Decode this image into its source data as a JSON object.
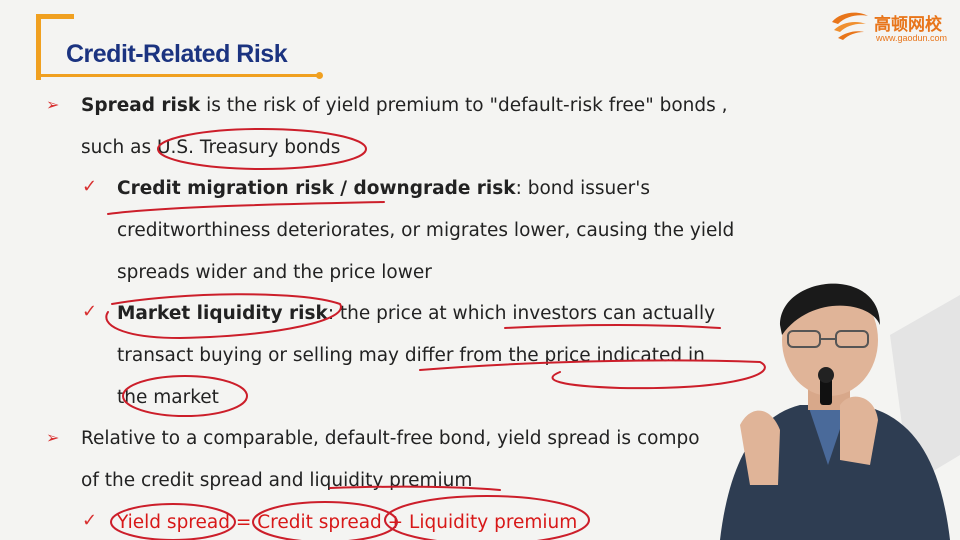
{
  "slide": {
    "title": "Credit-Related Risk",
    "logo": {
      "name_cn": "高顿网校",
      "url": "www.gaodun.com"
    },
    "bullets": {
      "b1_term": "Spread risk",
      "b1_text": " is the risk of yield premium to \"default-risk free\" bonds ,",
      "b1_line2": "such as U.S. Treasury bonds",
      "s1_term": "Credit migration risk / downgrade risk",
      "s1_text": ": bond issuer's",
      "s1_line2": "creditworthiness deteriorates, or migrates lower, causing the yield",
      "s1_line3": "spreads wider and the price lower",
      "s2_term": "Market liquidity risk",
      "s2_text": ": the price at which investors can actually",
      "s2_line2": "transact buying or selling may differ from the price indicated in",
      "s2_line3": "the market",
      "b2_text": "Relative to a comparable, default-free bond, yield spread is compo",
      "b2_line2": "of the credit spread and liquidity premium",
      "s3_text": "Yield spread = Credit spread + Liquidity premium"
    },
    "icons": {
      "arrow_bullet": "➢",
      "check_bullet": "✓"
    },
    "colors": {
      "title": "#1b3380",
      "accent": "#f0a020",
      "annotation": "#cc1e2a",
      "formula": "#d81818"
    }
  }
}
